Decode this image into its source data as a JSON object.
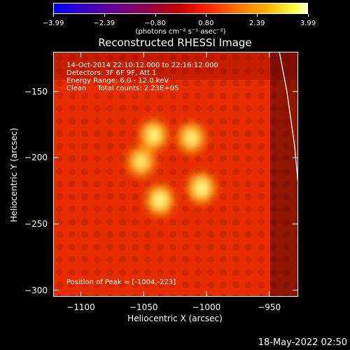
{
  "colorbar": {
    "ticks": [
      "-3.99",
      "-2.39",
      "-0.80",
      "0.80",
      "2.39",
      "3.99"
    ],
    "unit": "(photons cm⁻² s⁻¹ asec⁻²)"
  },
  "title": "Reconstructed RHESSI Image",
  "info": {
    "line1": "14-Oct-2014 22:10:12.000 to 22:16:12.000",
    "line2": "Detectors: 3F 6F 9F, Att 1",
    "line3": "Energy Range: 6.0 - 12.0 keV",
    "line4": "Clean     Total counts: 2.23E+05"
  },
  "peak": "Position of Peak = [-1004,-223]",
  "timestamp": "18-May-2022 02:50",
  "chart_data": {
    "type": "heatmap",
    "title": "Reconstructed RHESSI Image",
    "xlabel": "Heliocentric X (arcsec)",
    "ylabel": "Heliocentric Y (arcsec)",
    "xlim": [
      -1122,
      -927
    ],
    "ylim": [
      -305,
      -120
    ],
    "x_ticks": [
      -1100,
      -1050,
      -1000,
      -950
    ],
    "y_ticks": [
      -150,
      -200,
      -250,
      -300
    ],
    "x_tick_labels": [
      "−1100",
      "−1050",
      "−1000",
      "−950"
    ],
    "y_tick_labels": [
      "−150",
      "−200",
      "−250",
      "−300"
    ],
    "colorbar_range": [
      -3.99,
      3.99
    ],
    "sources": [
      {
        "x": -1052,
        "y": -203,
        "intensity": 0.85
      },
      {
        "x": -1042,
        "y": -183,
        "intensity": 0.95
      },
      {
        "x": -1012,
        "y": -185,
        "intensity": 0.9
      },
      {
        "x": -1037,
        "y": -232,
        "intensity": 1.0
      },
      {
        "x": -1004,
        "y": -223,
        "intensity": 1.0
      }
    ],
    "limb": [
      [
        -942,
        -120
      ],
      [
        -936,
        -150
      ],
      [
        -930,
        -190
      ],
      [
        -926,
        -230
      ],
      [
        -921,
        -265
      ]
    ]
  }
}
